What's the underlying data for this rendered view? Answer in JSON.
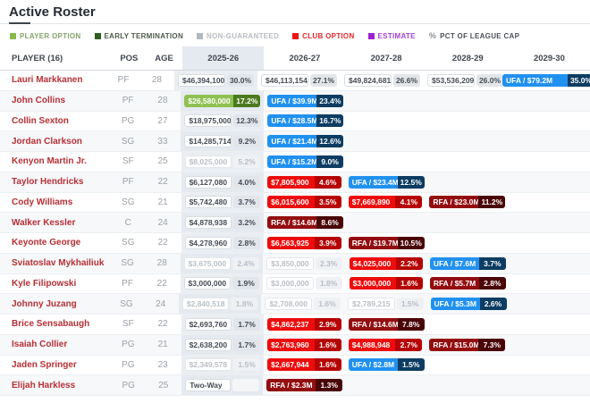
{
  "page": {
    "title": "Active Roster"
  },
  "legend": {
    "items": [
      {
        "label": "PLAYER OPTION",
        "icon": "swatch",
        "swatch": "#86b84c",
        "text_color": "#85a36b"
      },
      {
        "label": "EARLY TERMINATION",
        "icon": "swatch",
        "swatch": "#2c5f1d",
        "text_color": "#4d5a49"
      },
      {
        "label": "NON-GUARANTEED",
        "icon": "swatch",
        "swatch": "#b2b8bf",
        "text_color": "#b6bcc2"
      },
      {
        "label": "CLUB OPTION",
        "icon": "swatch",
        "swatch": "#ee1313",
        "text_color": "#e8282b"
      },
      {
        "label": "ESTIMATE",
        "icon": "swatch",
        "swatch": "#a020d0",
        "text_color": "#a643d6"
      },
      {
        "label": "PCT OF LEAGUE CAP",
        "icon": "percent-icon",
        "swatch": "",
        "text_color": "#4b525a"
      }
    ]
  },
  "colors": {
    "player_name": "#b72f34",
    "highlight_column_bg": "#eaeef3",
    "cell_types": {
      "plain": {
        "value_bg": "#ffffff",
        "value_text": "#454c55",
        "pct_bg": "#e2e6eb",
        "pct_text": "#454c55",
        "border": "#d9dde2"
      },
      "gray": {
        "value_bg": "#ffffff",
        "value_text": "#b9bfc6",
        "pct_bg": "#eff1f4",
        "pct_text": "#b9bfc6",
        "border": "#e4e7ea"
      },
      "twoway": {
        "value_bg": "#ffffff",
        "value_text": "#454c55",
        "pct_bg": "#f3f5f7",
        "pct_text": "#454c55",
        "border": "#d9dde2"
      },
      "green": {
        "value_bg": "#8fc152",
        "pct_bg": "#4c7a1e"
      },
      "blue": {
        "value_bg": "#2191f0",
        "pct_bg": "#0c3c62"
      },
      "red": {
        "value_bg": "#ee0c0c",
        "pct_bg": "#b60303"
      },
      "darkred": {
        "value_bg": "#930d10",
        "pct_bg": "#4a0507"
      }
    }
  },
  "table": {
    "columns": [
      "PLAYER (16)",
      "POS",
      "AGE",
      "2025-26",
      "2026-27",
      "2027-28",
      "2028-29",
      "2029-30"
    ],
    "highlighted_column": "2025-26",
    "players": [
      {
        "name": "Lauri Markkanen",
        "pos": "PF",
        "age": "28",
        "cells": [
          {
            "type": "plain",
            "value": "$46,394,100",
            "pct": "30.0%"
          },
          {
            "type": "plain",
            "value": "$46,113,154",
            "pct": "27.1%"
          },
          {
            "type": "plain",
            "value": "$49,824,681",
            "pct": "26.6%"
          },
          {
            "type": "plain",
            "value": "$53,536,209",
            "pct": "26.0%"
          },
          {
            "type": "blue",
            "value": "UFA / $79.2M",
            "pct": "35.0%"
          }
        ]
      },
      {
        "name": "John Collins",
        "pos": "PF",
        "age": "28",
        "cells": [
          {
            "type": "green",
            "value": "$26,580,000",
            "pct": "17.2%"
          },
          {
            "type": "blue",
            "value": "UFA / $39.9M",
            "pct": "23.4%"
          },
          null,
          null,
          null
        ]
      },
      {
        "name": "Collin Sexton",
        "pos": "PG",
        "age": "27",
        "cells": [
          {
            "type": "plain",
            "value": "$18,975,000",
            "pct": "12.3%"
          },
          {
            "type": "blue",
            "value": "UFA / $28.5M",
            "pct": "16.7%"
          },
          null,
          null,
          null
        ]
      },
      {
        "name": "Jordan Clarkson",
        "pos": "SG",
        "age": "33",
        "cells": [
          {
            "type": "plain",
            "value": "$14,285,714",
            "pct": "9.2%"
          },
          {
            "type": "blue",
            "value": "UFA / $21.4M",
            "pct": "12.6%"
          },
          null,
          null,
          null
        ]
      },
      {
        "name": "Kenyon Martin Jr.",
        "pos": "SF",
        "age": "25",
        "cells": [
          {
            "type": "gray",
            "value": "$8,025,000",
            "pct": "5.2%"
          },
          {
            "type": "blue",
            "value": "UFA / $15.2M",
            "pct": "9.0%"
          },
          null,
          null,
          null
        ]
      },
      {
        "name": "Taylor Hendricks",
        "pos": "PF",
        "age": "22",
        "cells": [
          {
            "type": "plain",
            "value": "$6,127,080",
            "pct": "4.0%"
          },
          {
            "type": "red",
            "value": "$7,805,900",
            "pct": "4.6%"
          },
          {
            "type": "blue",
            "value": "UFA / $23.4M",
            "pct": "12.5%"
          },
          null,
          null
        ]
      },
      {
        "name": "Cody Williams",
        "pos": "SG",
        "age": "21",
        "cells": [
          {
            "type": "plain",
            "value": "$5,742,480",
            "pct": "3.7%"
          },
          {
            "type": "red",
            "value": "$6,015,600",
            "pct": "3.5%"
          },
          {
            "type": "red",
            "value": "$7,669,890",
            "pct": "4.1%"
          },
          {
            "type": "darkred",
            "value": "RFA / $23.0M",
            "pct": "11.2%"
          },
          null
        ]
      },
      {
        "name": "Walker Kessler",
        "pos": "C",
        "age": "24",
        "cells": [
          {
            "type": "plain",
            "value": "$4,878,938",
            "pct": "3.2%"
          },
          {
            "type": "darkred",
            "value": "RFA / $14.6M",
            "pct": "8.6%"
          },
          null,
          null,
          null
        ]
      },
      {
        "name": "Keyonte George",
        "pos": "SG",
        "age": "22",
        "cells": [
          {
            "type": "plain",
            "value": "$4,278,960",
            "pct": "2.8%"
          },
          {
            "type": "red",
            "value": "$6,563,925",
            "pct": "3.9%"
          },
          {
            "type": "darkred",
            "value": "RFA / $19.7M",
            "pct": "10.5%"
          },
          null,
          null
        ]
      },
      {
        "name": "Sviatoslav Mykhailiuk",
        "pos": "SG",
        "age": "28",
        "cells": [
          {
            "type": "gray",
            "value": "$3,675,000",
            "pct": "2.4%"
          },
          {
            "type": "gray",
            "value": "$3,850,000",
            "pct": "2.3%"
          },
          {
            "type": "red",
            "value": "$4,025,000",
            "pct": "2.2%"
          },
          {
            "type": "blue",
            "value": "UFA / $7.6M",
            "pct": "3.7%"
          },
          null
        ]
      },
      {
        "name": "Kyle Filipowski",
        "pos": "PF",
        "age": "22",
        "cells": [
          {
            "type": "plain",
            "value": "$3,000,000",
            "pct": "1.9%"
          },
          {
            "type": "gray",
            "value": "$3,000,000",
            "pct": "1.8%"
          },
          {
            "type": "red",
            "value": "$3,000,000",
            "pct": "1.6%"
          },
          {
            "type": "darkred",
            "value": "RFA / $5.7M",
            "pct": "2.8%"
          },
          null
        ]
      },
      {
        "name": "Johnny Juzang",
        "pos": "SG",
        "age": "24",
        "cells": [
          {
            "type": "gray",
            "value": "$2,840,518",
            "pct": "1.8%"
          },
          {
            "type": "gray",
            "value": "$2,708,000",
            "pct": "1.6%"
          },
          {
            "type": "gray",
            "value": "$2,789,215",
            "pct": "1.5%"
          },
          {
            "type": "blue",
            "value": "UFA / $5.3M",
            "pct": "2.6%"
          },
          null
        ]
      },
      {
        "name": "Brice Sensabaugh",
        "pos": "SF",
        "age": "22",
        "cells": [
          {
            "type": "plain",
            "value": "$2,693,760",
            "pct": "1.7%"
          },
          {
            "type": "red",
            "value": "$4,862,237",
            "pct": "2.9%"
          },
          {
            "type": "darkred",
            "value": "RFA / $14.6M",
            "pct": "7.8%"
          },
          null,
          null
        ]
      },
      {
        "name": "Isaiah Collier",
        "pos": "PG",
        "age": "21",
        "cells": [
          {
            "type": "plain",
            "value": "$2,638,200",
            "pct": "1.7%"
          },
          {
            "type": "red",
            "value": "$2,763,960",
            "pct": "1.6%"
          },
          {
            "type": "red",
            "value": "$4,988,948",
            "pct": "2.7%"
          },
          {
            "type": "darkred",
            "value": "RFA / $15.0M",
            "pct": "7.3%"
          },
          null
        ]
      },
      {
        "name": "Jaden Springer",
        "pos": "PG",
        "age": "23",
        "cells": [
          {
            "type": "gray",
            "value": "$2,349,578",
            "pct": "1.5%"
          },
          {
            "type": "red",
            "value": "$2,667,944",
            "pct": "1.6%"
          },
          {
            "type": "blue",
            "value": "UFA / $2.8M",
            "pct": "1.5%"
          },
          null,
          null
        ]
      },
      {
        "name": "Elijah Harkless",
        "pos": "PG",
        "age": "25",
        "cells": [
          {
            "type": "twoway",
            "value": "Two-Way",
            "pct": ""
          },
          {
            "type": "darkred",
            "value": "RFA / $2.3M",
            "pct": "1.3%"
          },
          null,
          null,
          null
        ]
      }
    ]
  }
}
